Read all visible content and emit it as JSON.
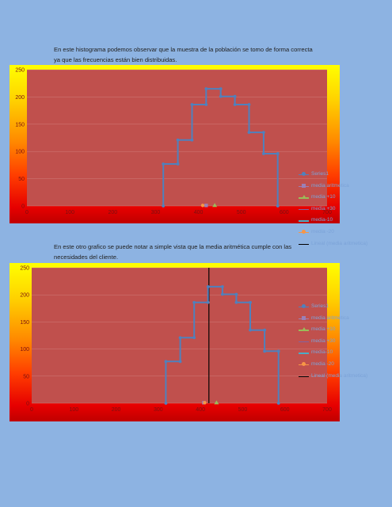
{
  "paragraph1": {
    "line1": "En este histograma podemos observar que la muestra de la población se tomo de forma correcta",
    "line2": "ya que las frecuencias están bien distribuidas."
  },
  "paragraph2": {
    "line1": "En este otro grafico se puede notar a simple vista que la media aritmética cumple con las",
    "line2": "necesidades del cliente."
  },
  "colors": {
    "plot_fill": "#c0504d",
    "series": "#4f81bd",
    "media_aritmetica": "#9b80b6",
    "media_plus10": "#9bbb59",
    "media_plus30": "#8064a2",
    "media_minus10": "#4bacc6",
    "media_minus20": "#f79646",
    "lineal": "#000000"
  },
  "chart_data": [
    {
      "type": "line",
      "title": "",
      "xlabel": "",
      "ylabel": "",
      "xlim": [
        0,
        700
      ],
      "ylim": [
        0,
        250
      ],
      "x_ticks": [
        "0",
        "100",
        "200",
        "300",
        "400",
        "500",
        "600",
        "700"
      ],
      "y_ticks": [
        "0",
        "50",
        "100",
        "150",
        "200",
        "250"
      ],
      "legend_position": "right",
      "series": [
        {
          "name": "Series1",
          "x": [
            318,
            318,
            352,
            352,
            385,
            385,
            418,
            418,
            452,
            452,
            485,
            485,
            518,
            518,
            552,
            552,
            585,
            585
          ],
          "y": [
            0,
            77,
            77,
            121,
            121,
            186,
            186,
            215,
            215,
            201,
            201,
            186,
            186,
            135,
            135,
            96,
            96,
            0
          ]
        },
        {
          "name": "media aritmetica",
          "x": [
            418
          ],
          "y": [
            1
          ]
        },
        {
          "name": "media +10",
          "x": [
            438
          ],
          "y": [
            1
          ]
        },
        {
          "name": "media +30",
          "x": [],
          "y": []
        },
        {
          "name": "media-10",
          "x": [],
          "y": []
        },
        {
          "name": "media -20",
          "x": [
            410
          ],
          "y": [
            1
          ]
        },
        {
          "name": "Lineal (media aritmetica)",
          "x": [],
          "y": []
        }
      ]
    },
    {
      "type": "line",
      "title": "",
      "xlabel": "",
      "ylabel": "",
      "xlim": [
        0,
        700
      ],
      "ylim": [
        0,
        250
      ],
      "x_ticks": [
        "0",
        "100",
        "200",
        "300",
        "400",
        "500",
        "600",
        "700"
      ],
      "y_ticks": [
        "0",
        "50",
        "100",
        "150",
        "200",
        "250"
      ],
      "legend_position": "right",
      "vertical_line_x": 420,
      "series": [
        {
          "name": "Series1",
          "x": [
            318,
            318,
            352,
            352,
            385,
            385,
            418,
            418,
            452,
            452,
            485,
            485,
            518,
            518,
            552,
            552,
            585,
            585
          ],
          "y": [
            0,
            77,
            77,
            121,
            121,
            186,
            186,
            215,
            215,
            201,
            201,
            186,
            186,
            135,
            135,
            96,
            96,
            0
          ]
        },
        {
          "name": "media aritmetica",
          "x": [
            408
          ],
          "y": [
            1
          ]
        },
        {
          "name": "media +10",
          "x": [
            438
          ],
          "y": [
            1
          ]
        },
        {
          "name": "media +30",
          "x": [],
          "y": []
        },
        {
          "name": "media-10",
          "x": [],
          "y": []
        },
        {
          "name": "media -20",
          "x": [
            410
          ],
          "y": [
            1
          ]
        },
        {
          "name": "Lineal (media aritmetica)",
          "x": [],
          "y": []
        }
      ]
    }
  ]
}
